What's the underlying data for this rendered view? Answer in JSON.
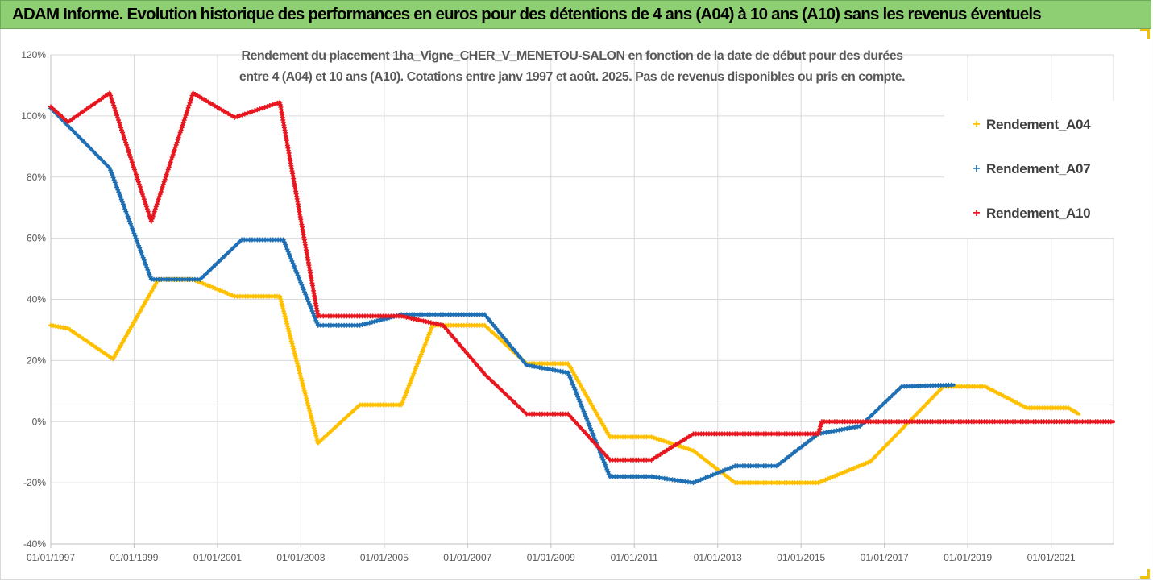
{
  "banner": {
    "title": "ADAM Informe. Evolution historique des performances en euros pour des détentions de 4 ans (A04) à 10 ans (A10) sans les revenus éventuels"
  },
  "chart_data": {
    "type": "line",
    "title": "Rendement du placement 1ha_Vigne_CHER_V_MENETOU-SALON en fonction de la date de début pour des durées\nentre 4 (A04) et 10 ans (A10). Cotations entre janv 1997 et août. 2025. Pas de revenus disponibles ou pris en compte.",
    "xlabel": "",
    "ylabel": "",
    "x_range": [
      "01/01/1997",
      "2022-07-01"
    ],
    "ylim": [
      -40,
      120
    ],
    "y_ticks": [
      "120%",
      "100%",
      "80%",
      "60%",
      "40%",
      "20%",
      "0%",
      "-20%",
      "-40%"
    ],
    "x_ticks": [
      "01/01/1997",
      "01/01/1999",
      "01/01/2001",
      "01/01/2003",
      "01/01/2005",
      "01/01/2007",
      "01/01/2009",
      "01/01/2011",
      "01/01/2013",
      "01/01/2015",
      "01/01/2017",
      "01/01/2019",
      "01/01/2021"
    ],
    "grid": true,
    "legend_position": "right",
    "series": [
      {
        "name": "Rendement_A04",
        "color": "#ffc000",
        "points": [
          [
            "1997-01-01",
            31.5
          ],
          [
            "1997-06-01",
            30.5
          ],
          [
            "1998-07-01",
            20.5
          ],
          [
            "1999-08-01",
            46.5
          ],
          [
            "2000-06-01",
            46.5
          ],
          [
            "2001-06-01",
            41
          ],
          [
            "2002-07-01",
            41
          ],
          [
            "2003-06-01",
            -7
          ],
          [
            "2004-06-01",
            5.5
          ],
          [
            "2005-06-01",
            5.5
          ],
          [
            "2006-03-01",
            31.5
          ],
          [
            "2007-06-01",
            31.5
          ],
          [
            "2008-06-01",
            19
          ],
          [
            "2009-06-01",
            19
          ],
          [
            "2010-06-01",
            -5
          ],
          [
            "2011-06-01",
            -5
          ],
          [
            "2012-06-01",
            -9.5
          ],
          [
            "2013-06-01",
            -20
          ],
          [
            "2015-06-01",
            -20
          ],
          [
            "2016-09-01",
            -13
          ],
          [
            "2018-06-01",
            11.5
          ],
          [
            "2019-06-01",
            11.5
          ],
          [
            "2020-06-01",
            4.5
          ],
          [
            "2021-06-01",
            4.5
          ],
          [
            "2021-09-01",
            2.5
          ]
        ]
      },
      {
        "name": "Rendement_A07",
        "color": "#1f6fb4",
        "points": [
          [
            "1997-01-01",
            102.5
          ],
          [
            "1998-06-01",
            83
          ],
          [
            "1999-06-01",
            46.5
          ],
          [
            "2000-08-01",
            46.5
          ],
          [
            "2001-08-01",
            59.5
          ],
          [
            "2002-08-01",
            59.5
          ],
          [
            "2003-06-01",
            31.5
          ],
          [
            "2004-06-01",
            31.5
          ],
          [
            "2005-06-01",
            35
          ],
          [
            "2007-06-01",
            35
          ],
          [
            "2008-06-01",
            18.5
          ],
          [
            "2009-06-01",
            16
          ],
          [
            "2010-06-01",
            -18
          ],
          [
            "2011-06-01",
            -18
          ],
          [
            "2012-06-01",
            -20
          ],
          [
            "2013-06-01",
            -14.5
          ],
          [
            "2014-06-01",
            -14.5
          ],
          [
            "2015-06-01",
            -4
          ],
          [
            "2016-06-01",
            -1.5
          ],
          [
            "2017-06-01",
            11.5
          ],
          [
            "2018-09-01",
            12
          ]
        ]
      },
      {
        "name": "Rendement_A10",
        "color": "#e8161e",
        "points": [
          [
            "1997-01-01",
            103
          ],
          [
            "1997-06-01",
            98
          ],
          [
            "1998-06-01",
            107.5
          ],
          [
            "1999-06-01",
            65.5
          ],
          [
            "2000-06-01",
            107.5
          ],
          [
            "2001-06-01",
            99.5
          ],
          [
            "2002-07-01",
            104.5
          ],
          [
            "2003-06-01",
            34.5
          ],
          [
            "2005-06-01",
            34.5
          ],
          [
            "2006-06-01",
            31.5
          ],
          [
            "2007-06-01",
            15.5
          ],
          [
            "2008-06-01",
            2.5
          ],
          [
            "2009-06-01",
            2.5
          ],
          [
            "2010-06-01",
            -12.5
          ],
          [
            "2011-06-01",
            -12.5
          ],
          [
            "2012-06-01",
            -4
          ],
          [
            "2015-06-01",
            -4
          ],
          [
            "2015-07-01",
            0
          ],
          [
            "2022-07-01",
            0
          ]
        ]
      }
    ]
  }
}
